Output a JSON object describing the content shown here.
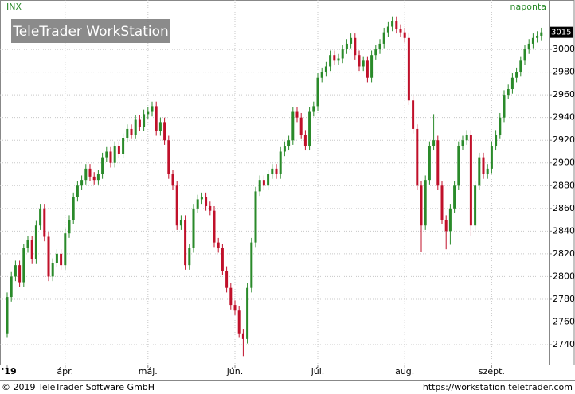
{
  "chart_data": {
    "type": "candlestick",
    "title": "INX",
    "period": "naponta",
    "watermark": "TeleTrader WorkStation",
    "footer_left": "© 2019 TeleTrader Software GmbH",
    "footer_right": "https://workstation.teletrader.com",
    "last_price": 3015,
    "up_color": "#2a8a2a",
    "down_color": "#c0102a",
    "grid": true,
    "ylim": [
      2722.5,
      3043.5
    ],
    "yticks": [
      2740,
      2760,
      2780,
      2800,
      2820,
      2840,
      2860,
      2880,
      2900,
      2920,
      2940,
      2960,
      2980,
      3000
    ],
    "categories": [
      "'19",
      null,
      null,
      null,
      null,
      null,
      null,
      null,
      null,
      null,
      null,
      null,
      null,
      null,
      "ápr.",
      null,
      null,
      null,
      null,
      null,
      null,
      null,
      null,
      null,
      null,
      null,
      null,
      null,
      null,
      null,
      null,
      null,
      null,
      null,
      "máj.",
      null,
      null,
      null,
      null,
      null,
      null,
      null,
      null,
      null,
      null,
      null,
      null,
      null,
      null,
      null,
      null,
      null,
      null,
      null,
      null,
      "jún.",
      null,
      null,
      null,
      null,
      null,
      null,
      null,
      null,
      null,
      null,
      null,
      null,
      null,
      null,
      null,
      null,
      null,
      null,
      null,
      "júl.",
      null,
      null,
      null,
      null,
      null,
      null,
      null,
      null,
      null,
      null,
      null,
      null,
      null,
      null,
      null,
      null,
      null,
      null,
      null,
      null,
      "aug.",
      null,
      null,
      null,
      null,
      null,
      null,
      null,
      null,
      null,
      null,
      null,
      null,
      null,
      null,
      null,
      null,
      null,
      null,
      null,
      null,
      "szept.",
      null,
      null,
      null,
      null,
      null,
      null,
      null,
      null,
      null,
      null,
      null,
      null
    ],
    "open": [
      2750,
      2782,
      2800,
      2810,
      2795,
      2825,
      2832,
      2815,
      2845,
      2860,
      2835,
      2800,
      2812,
      2820,
      2810,
      2838,
      2850,
      2870,
      2880,
      2885,
      2895,
      2888,
      2885,
      2890,
      2905,
      2910,
      2900,
      2915,
      2908,
      2922,
      2930,
      2925,
      2938,
      2932,
      2943,
      2945,
      2950,
      2928,
      2936,
      2920,
      2890,
      2880,
      2845,
      2850,
      2810,
      2825,
      2860,
      2868,
      2870,
      2862,
      2858,
      2830,
      2825,
      2805,
      2790,
      2775,
      2770,
      2750,
      2745,
      2790,
      2830,
      2875,
      2885,
      2880,
      2890,
      2895,
      2890,
      2910,
      2915,
      2920,
      2945,
      2940,
      2925,
      2915,
      2945,
      2950,
      2975,
      2980,
      2985,
      2995,
      2990,
      2992,
      3000,
      3005,
      3010,
      2995,
      2985,
      2990,
      2975,
      2995,
      3000,
      3005,
      3015,
      3020,
      3025,
      3018,
      3015,
      3010,
      2955,
      2930,
      2880,
      2845,
      2885,
      2915,
      2920,
      2880,
      2850,
      2840,
      2860,
      2880,
      2915,
      2920,
      2925,
      2845,
      2880,
      2905,
      2890,
      2895,
      2915,
      2925,
      2940,
      2960,
      2965,
      2975,
      2980,
      2990,
      3000,
      3005,
      3010,
      3012
    ],
    "high": [
      2786,
      2804,
      2814,
      2814,
      2829,
      2836,
      2836,
      2849,
      2864,
      2864,
      2839,
      2816,
      2824,
      2824,
      2842,
      2854,
      2874,
      2884,
      2889,
      2899,
      2899,
      2892,
      2894,
      2909,
      2914,
      2914,
      2919,
      2919,
      2926,
      2934,
      2934,
      2942,
      2942,
      2947,
      2949,
      2954,
      2954,
      2940,
      2940,
      2924,
      2894,
      2884,
      2854,
      2854,
      2829,
      2864,
      2872,
      2874,
      2874,
      2866,
      2862,
      2834,
      2829,
      2809,
      2794,
      2779,
      2774,
      2754,
      2794,
      2834,
      2879,
      2889,
      2889,
      2894,
      2899,
      2899,
      2914,
      2919,
      2924,
      2949,
      2949,
      2944,
      2929,
      2949,
      2954,
      2979,
      2984,
      2989,
      2999,
      2999,
      2996,
      3004,
      3009,
      3014,
      3014,
      2999,
      2994,
      2994,
      2999,
      3004,
      3009,
      3019,
      3024,
      3029,
      3029,
      3022,
      3019,
      3014,
      2959,
      2934,
      2884,
      2889,
      2919,
      2943,
      2924,
      2884,
      2854,
      2864,
      2884,
      2919,
      2924,
      2929,
      2929,
      2884,
      2909,
      2909,
      2899,
      2919,
      2929,
      2944,
      2964,
      2969,
      2979,
      2984,
      2994,
      3004,
      3009,
      3014,
      3016,
      3019
    ],
    "low": [
      2746,
      2778,
      2796,
      2791,
      2791,
      2821,
      2811,
      2811,
      2841,
      2831,
      2796,
      2796,
      2808,
      2806,
      2806,
      2834,
      2846,
      2866,
      2876,
      2881,
      2884,
      2881,
      2881,
      2886,
      2901,
      2896,
      2896,
      2904,
      2904,
      2918,
      2921,
      2921,
      2928,
      2928,
      2939,
      2941,
      2924,
      2924,
      2916,
      2886,
      2876,
      2841,
      2841,
      2806,
      2806,
      2821,
      2856,
      2864,
      2858,
      2854,
      2826,
      2821,
      2801,
      2786,
      2771,
      2766,
      2746,
      2730,
      2741,
      2786,
      2826,
      2871,
      2876,
      2876,
      2886,
      2886,
      2886,
      2906,
      2911,
      2916,
      2936,
      2921,
      2911,
      2911,
      2941,
      2946,
      2971,
      2976,
      2981,
      2986,
      2986,
      2988,
      2996,
      3001,
      2991,
      2981,
      2981,
      2971,
      2971,
      2991,
      2996,
      3001,
      3011,
      3016,
      3014,
      3011,
      3006,
      2951,
      2926,
      2876,
      2822,
      2841,
      2881,
      2911,
      2876,
      2846,
      2824,
      2828,
      2856,
      2876,
      2911,
      2916,
      2836,
      2841,
      2876,
      2886,
      2886,
      2891,
      2911,
      2921,
      2936,
      2956,
      2961,
      2971,
      2976,
      2986,
      2996,
      3001,
      3006,
      3008
    ],
    "close": [
      2782,
      2800,
      2810,
      2795,
      2825,
      2832,
      2815,
      2845,
      2860,
      2835,
      2800,
      2812,
      2820,
      2810,
      2838,
      2850,
      2870,
      2880,
      2885,
      2895,
      2888,
      2885,
      2890,
      2905,
      2910,
      2900,
      2915,
      2908,
      2922,
      2930,
      2925,
      2938,
      2932,
      2943,
      2945,
      2950,
      2928,
      2936,
      2920,
      2890,
      2880,
      2845,
      2850,
      2810,
      2825,
      2860,
      2868,
      2870,
      2862,
      2858,
      2830,
      2825,
      2805,
      2790,
      2775,
      2770,
      2750,
      2745,
      2790,
      2830,
      2875,
      2885,
      2880,
      2890,
      2895,
      2890,
      2910,
      2915,
      2920,
      2945,
      2940,
      2925,
      2915,
      2945,
      2950,
      2975,
      2980,
      2985,
      2995,
      2990,
      2992,
      3000,
      3005,
      3010,
      2995,
      2985,
      2990,
      2975,
      2995,
      3000,
      3005,
      3015,
      3020,
      3025,
      3018,
      3015,
      3010,
      2955,
      2930,
      2880,
      2845,
      2885,
      2915,
      2920,
      2880,
      2850,
      2840,
      2860,
      2880,
      2915,
      2920,
      2925,
      2845,
      2880,
      2905,
      2890,
      2895,
      2915,
      2925,
      2940,
      2960,
      2965,
      2975,
      2980,
      2990,
      3000,
      3005,
      3010,
      3012,
      3015
    ]
  }
}
